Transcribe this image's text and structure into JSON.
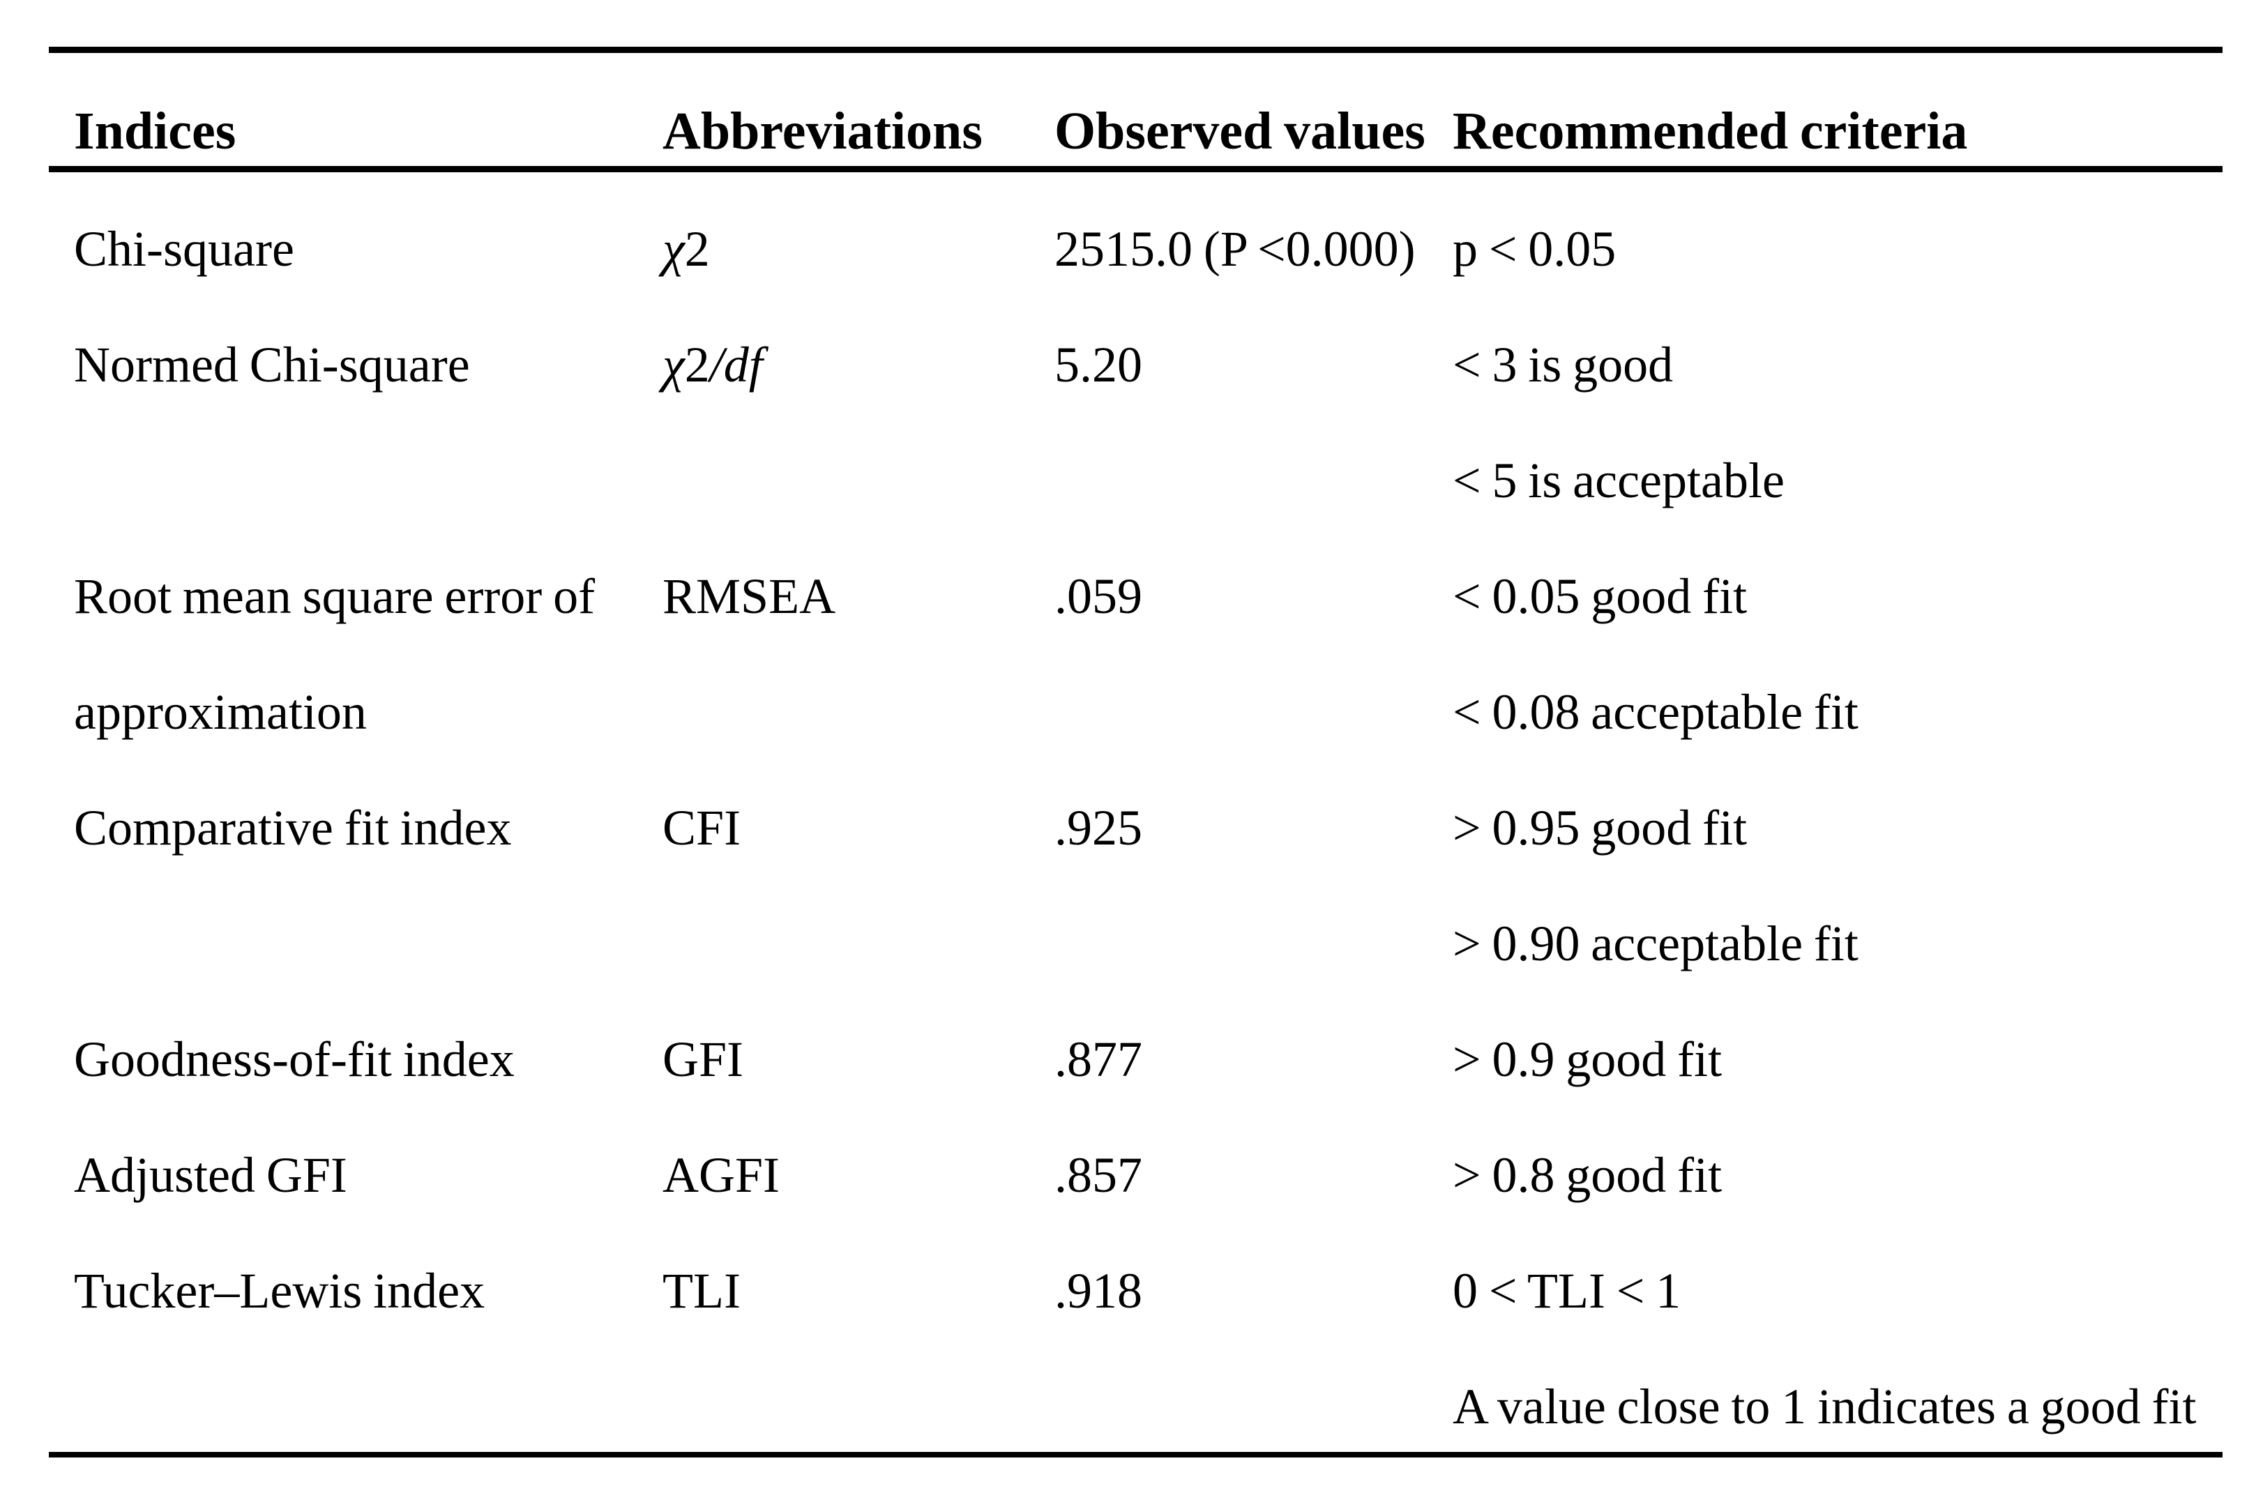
{
  "colors": {
    "background": "#ffffff",
    "text": "#000000",
    "rule": "#000000"
  },
  "table": {
    "columns": [
      "Indices",
      "Abbreviations",
      "Observed values",
      "Recommended criteria"
    ],
    "rows": [
      {
        "indices": "Chi-square",
        "abbreviation": [
          {
            "t": "χ",
            "i": true
          },
          {
            "t": "2",
            "i": false
          }
        ],
        "observed": "2515.0 (P <0.000)",
        "criteria": "p < 0.05"
      },
      {
        "indices": "Normed Chi-square",
        "abbreviation": [
          {
            "t": "χ",
            "i": true
          },
          {
            "t": "2",
            "i": false
          },
          {
            "t": "/df",
            "i": true
          }
        ],
        "observed": "5.20",
        "criteria": "< 3 is good"
      },
      {
        "indices": "",
        "abbreviation": [],
        "observed": "",
        "criteria": "< 5 is acceptable"
      },
      {
        "indices": "Root mean square error of",
        "abbreviation": [
          {
            "t": "RMSEA",
            "i": false
          }
        ],
        "observed": ".059",
        "criteria": "< 0.05 good fit"
      },
      {
        "indices": "approximation",
        "abbreviation": [],
        "observed": "",
        "criteria": "< 0.08 acceptable fit"
      },
      {
        "indices": "Comparative fit index",
        "abbreviation": [
          {
            "t": "CFI",
            "i": false
          }
        ],
        "observed": ".925",
        "criteria": "> 0.95 good fit"
      },
      {
        "indices": "",
        "abbreviation": [],
        "observed": "",
        "criteria": "> 0.90 acceptable fit"
      },
      {
        "indices": "Goodness-of-fit index",
        "abbreviation": [
          {
            "t": "GFI",
            "i": false
          }
        ],
        "observed": ".877",
        "criteria": "> 0.9 good fit"
      },
      {
        "indices": "Adjusted GFI",
        "abbreviation": [
          {
            "t": "AGFI",
            "i": false
          }
        ],
        "observed": ".857",
        "criteria": "> 0.8 good fit"
      },
      {
        "indices": "Tucker–Lewis index",
        "abbreviation": [
          {
            "t": "TLI",
            "i": false
          }
        ],
        "observed": ".918",
        "criteria": "0 < TLI < 1"
      },
      {
        "indices": "",
        "abbreviation": [],
        "observed": "",
        "criteria": "A value close to 1 indicates a good fit"
      }
    ]
  }
}
